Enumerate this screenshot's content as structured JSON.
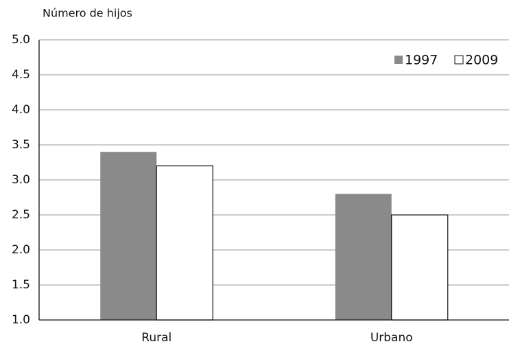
{
  "chart_data": {
    "type": "bar",
    "y_label": "Número de hijos",
    "categories": [
      "Rural",
      "Urbano"
    ],
    "series": [
      {
        "name": "1997",
        "color": "#8a8a8a",
        "values": [
          3.4,
          2.8
        ]
      },
      {
        "name": "2009",
        "color": "#ffffff",
        "values": [
          3.2,
          2.5
        ]
      }
    ],
    "ylim": [
      1,
      5
    ],
    "yticks": [
      {
        "value": 1,
        "label": "1.0"
      },
      1.5,
      {
        "value": 2,
        "label": "2.0"
      },
      2.5,
      {
        "value": 3,
        "label": "3.0"
      },
      3.5,
      {
        "value": 4,
        "label": "4.0"
      },
      4.5,
      {
        "value": 5,
        "label": "5.0"
      }
    ],
    "grid": true,
    "legend": "top-right"
  }
}
